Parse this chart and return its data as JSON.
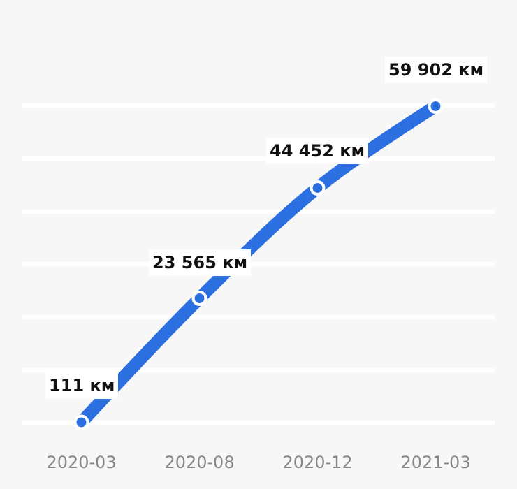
{
  "chart_data": {
    "type": "line",
    "categories": [
      "2020-03",
      "2020-08",
      "2020-12",
      "2021-03"
    ],
    "series": [
      {
        "color": "#2b6fe0",
        "values": [
          111,
          23565,
          44452,
          59902
        ],
        "value_labels": [
          "111 км",
          "23 565 км",
          "44 452 км",
          "59 902 км"
        ]
      }
    ],
    "grid": "y",
    "marker": "circle",
    "line_style": "solid",
    "tick_labels": "x",
    "legend": false
  }
}
